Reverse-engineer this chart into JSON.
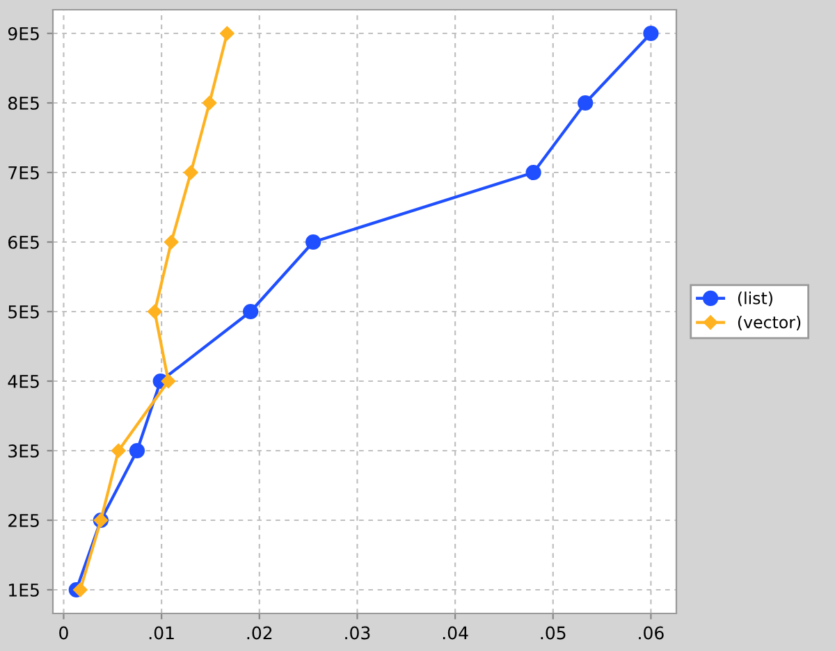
{
  "chart_data": {
    "type": "line",
    "series": [
      {
        "name": "(list)",
        "color": "#1f4fff",
        "marker": "circle",
        "x": [
          0.0013,
          0.0038,
          0.0075,
          0.0099,
          0.0191,
          0.0255,
          0.048,
          0.0533,
          0.06
        ],
        "values": [
          100000,
          200000,
          300000,
          400000,
          500000,
          600000,
          700000,
          800000,
          900000
        ]
      },
      {
        "name": "(vector)",
        "color": "#ffb21f",
        "marker": "diamond",
        "x": [
          0.0017,
          0.0038,
          0.0056,
          0.0107,
          0.0093,
          0.011,
          0.013,
          0.0149,
          0.0167
        ],
        "values": [
          100000,
          200000,
          300000,
          400000,
          500000,
          600000,
          700000,
          800000,
          900000
        ]
      }
    ],
    "xlim": [
      -0.0011,
      0.0626
    ],
    "ylim": [
      66000,
      934000
    ],
    "xticks": [
      0,
      {
        "value": 0.01,
        "label": ".01"
      },
      {
        "value": 0.02,
        "label": ".02"
      },
      {
        "value": 0.03,
        "label": ".03"
      },
      {
        "value": 0.04,
        "label": ".04"
      },
      {
        "value": 0.05,
        "label": ".05"
      },
      {
        "value": 0.06,
        "label": ".06"
      }
    ],
    "yticks": [
      {
        "value": 100000,
        "label": "1E5"
      },
      {
        "value": 200000,
        "label": "2E5"
      },
      {
        "value": 300000,
        "label": "3E5"
      },
      {
        "value": 400000,
        "label": "4E5"
      },
      {
        "value": 500000,
        "label": "5E5"
      },
      {
        "value": 600000,
        "label": "6E5"
      },
      {
        "value": 700000,
        "label": "7E5"
      },
      {
        "value": 800000,
        "label": "8E5"
      },
      {
        "value": 900000,
        "label": "9E5"
      }
    ],
    "grid": true,
    "legend": "right",
    "line_style": "solid"
  }
}
